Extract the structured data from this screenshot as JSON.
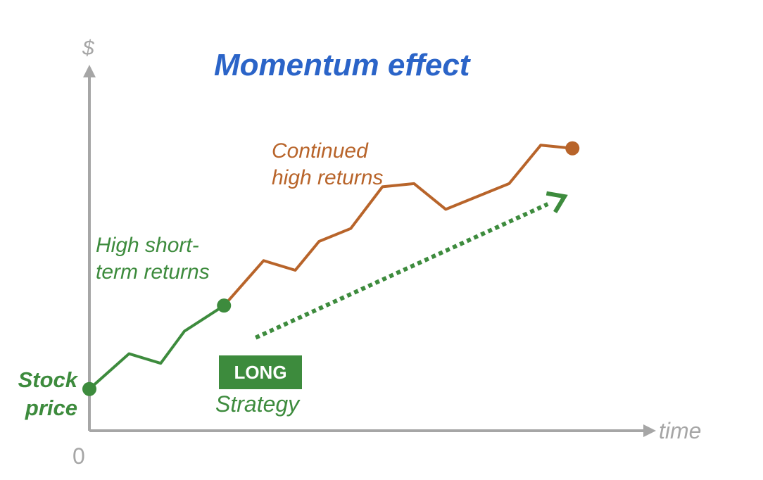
{
  "title": "Momentum effect",
  "y_axis_label": "$",
  "x_axis_label": "time",
  "origin_label": "0",
  "stock_price_label": [
    "Stock",
    "price"
  ],
  "high_short_label": [
    "High short-",
    "term returns"
  ],
  "continued_label": [
    "Continued",
    "high returns"
  ],
  "long_badge": "LONG",
  "strategy_label": "Strategy",
  "colors": {
    "title": "#2b64c8",
    "axis": "#a6a6a6",
    "green": "#3d8b3d",
    "orange": "#b8642a",
    "badge_bg": "#3d8b3d"
  },
  "chart_data": {
    "type": "line",
    "series": [
      {
        "segment": "short_term",
        "x": [
          0,
          1.25,
          2.25,
          3.0,
          4.25
        ],
        "y": [
          1.3,
          2.4,
          2.1,
          3.1,
          3.9
        ]
      },
      {
        "segment": "continued",
        "x": [
          4.25,
          5.5,
          6.5,
          7.25,
          8.25,
          9.25,
          10.25,
          11.25,
          12.25,
          13.25,
          14.25,
          15.25
        ],
        "y": [
          3.9,
          5.3,
          5.0,
          5.9,
          6.3,
          7.6,
          7.7,
          6.9,
          7.3,
          7.7,
          8.9,
          8.8
        ]
      }
    ],
    "markers": [
      {
        "x": 0,
        "y": 1.3
      },
      {
        "x": 4.25,
        "y": 3.9
      },
      {
        "x": 15.25,
        "y": 8.8
      }
    ],
    "strategy_arrow": {
      "from": [
        5.25,
        2.9
      ],
      "to": [
        15.0,
        7.3
      ]
    },
    "xlim": [
      0,
      20
    ],
    "ylim": [
      0,
      12.5
    ]
  }
}
